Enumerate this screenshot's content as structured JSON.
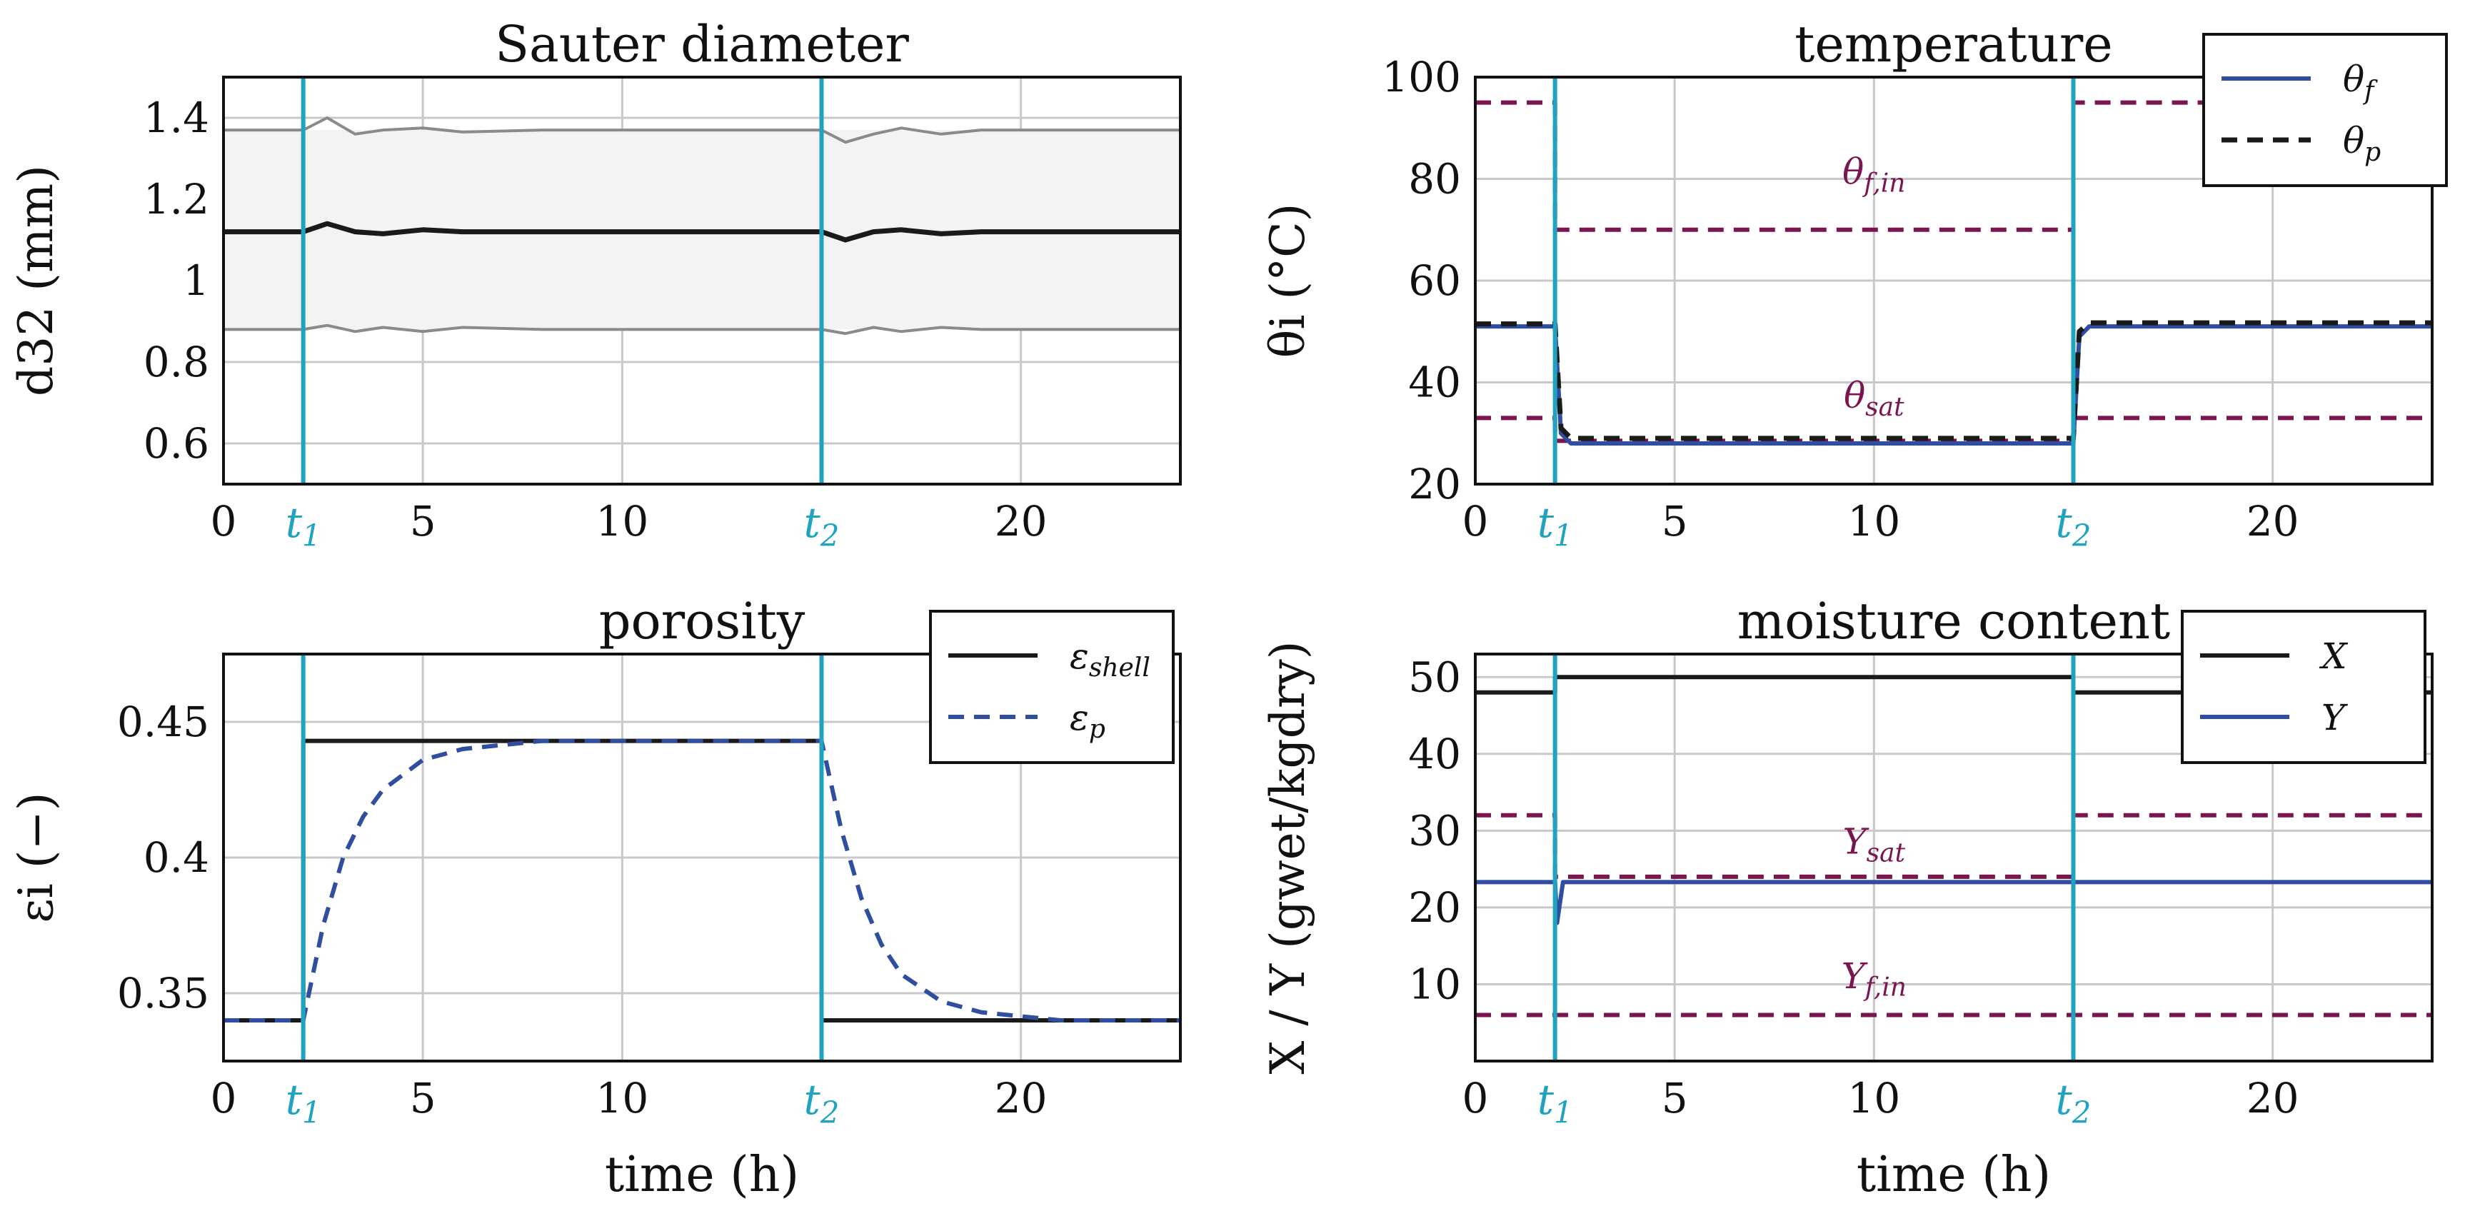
{
  "colors": {
    "marker": "#1fa3c0",
    "annotation": "#7a1550",
    "blue": "#2f4ea0",
    "black": "#1a1a1a",
    "gray": "#8a8a8a",
    "band": "#f3f3f3"
  },
  "t_markers": {
    "t1": {
      "base": "t",
      "sub": "1",
      "value": 2
    },
    "t2": {
      "base": "t",
      "sub": "2",
      "value": 15
    }
  },
  "chart_data": [
    {
      "id": "sauter",
      "type": "line",
      "title": "Sauter diameter",
      "ylabel": "d32 (mm)",
      "xlabel": "",
      "xlim": [
        0,
        24
      ],
      "ylim": [
        0.5,
        1.5
      ],
      "xticks": [
        0,
        5,
        10,
        20
      ],
      "xtick_labels": [
        "0",
        "5",
        "10",
        "20"
      ],
      "yticks": [
        0.6,
        0.8,
        1,
        1.2,
        1.4
      ],
      "ytick_labels": [
        "0.6",
        "0.8",
        "1",
        "1.2",
        "1.4"
      ],
      "band": {
        "upper": 1.37,
        "lower": 0.88
      },
      "series": [
        {
          "name": "mean",
          "x": [
            0,
            2,
            2.6,
            3.3,
            4,
            5,
            6,
            8,
            15,
            15.6,
            16.3,
            17,
            18,
            19,
            21,
            24
          ],
          "y": [
            1.12,
            1.12,
            1.14,
            1.12,
            1.115,
            1.125,
            1.12,
            1.12,
            1.12,
            1.1,
            1.12,
            1.125,
            1.115,
            1.12,
            1.12,
            1.12
          ]
        },
        {
          "name": "upper",
          "x": [
            0,
            2,
            2.6,
            3.3,
            4,
            5,
            6,
            8,
            15,
            15.6,
            16.3,
            17,
            18,
            19,
            21,
            24
          ],
          "y": [
            1.37,
            1.37,
            1.4,
            1.36,
            1.37,
            1.375,
            1.365,
            1.37,
            1.37,
            1.34,
            1.36,
            1.375,
            1.36,
            1.37,
            1.37,
            1.37
          ]
        },
        {
          "name": "lower",
          "x": [
            0,
            2,
            2.6,
            3.3,
            4,
            5,
            6,
            8,
            15,
            15.6,
            16.3,
            17,
            18,
            19,
            21,
            24
          ],
          "y": [
            0.88,
            0.88,
            0.89,
            0.875,
            0.885,
            0.875,
            0.885,
            0.88,
            0.88,
            0.87,
            0.885,
            0.875,
            0.885,
            0.88,
            0.88,
            0.88
          ]
        }
      ]
    },
    {
      "id": "temperature",
      "type": "line",
      "title": "temperature",
      "ylabel": "θi (°C)",
      "xlabel": "",
      "xlim": [
        0,
        24
      ],
      "ylim": [
        20,
        100
      ],
      "xticks": [
        0,
        5,
        10,
        20
      ],
      "xtick_labels": [
        "0",
        "5",
        "10",
        "20"
      ],
      "yticks": [
        20,
        40,
        60,
        80,
        100
      ],
      "ytick_labels": [
        "20",
        "40",
        "60",
        "80",
        "100"
      ],
      "legend": {
        "position": "top-right",
        "entries": [
          "θf",
          "θp"
        ]
      },
      "annotations": [
        {
          "text": "θf,in",
          "x": 10,
          "y": 79
        },
        {
          "text": "θsat",
          "x": 10,
          "y": 35
        }
      ],
      "series": [
        {
          "name": "θf,in",
          "x": [
            0,
            2,
            2,
            15,
            15,
            24
          ],
          "y": [
            95,
            95,
            70,
            70,
            95,
            95
          ]
        },
        {
          "name": "θsat",
          "x": [
            0,
            2,
            2,
            15,
            15,
            24
          ],
          "y": [
            33,
            33,
            28.5,
            28.5,
            33,
            33
          ]
        },
        {
          "name": "θf",
          "x": [
            0,
            2,
            2.15,
            2.4,
            15,
            15.15,
            15.4,
            24
          ],
          "y": [
            51,
            51,
            30,
            28,
            28,
            49,
            51,
            51
          ]
        },
        {
          "name": "θp",
          "x": [
            0,
            2,
            2.15,
            2.4,
            15,
            15.15,
            15.4,
            24
          ],
          "y": [
            51.5,
            51.5,
            31,
            29,
            29,
            50,
            51.7,
            51.7
          ]
        }
      ]
    },
    {
      "id": "porosity",
      "type": "line",
      "title": "porosity",
      "ylabel": "εi (−)",
      "xlabel": "time (h)",
      "xlim": [
        0,
        24
      ],
      "ylim": [
        0.325,
        0.475
      ],
      "xticks": [
        0,
        5,
        10,
        20
      ],
      "xtick_labels": [
        "0",
        "5",
        "10",
        "20"
      ],
      "yticks": [
        0.35,
        0.4,
        0.45
      ],
      "ytick_labels": [
        "0.35",
        "0.4",
        "0.45"
      ],
      "legend": {
        "position": "top-right",
        "entries": [
          "εshell",
          "εp"
        ]
      },
      "series": [
        {
          "name": "εshell",
          "x": [
            0,
            2,
            2,
            15,
            15,
            24
          ],
          "y": [
            0.34,
            0.34,
            0.443,
            0.443,
            0.34,
            0.34
          ]
        },
        {
          "name": "εp",
          "x": [
            0,
            2,
            2.5,
            3,
            3.5,
            4,
            5,
            6,
            8,
            15,
            15.5,
            16,
            16.5,
            17,
            18,
            19,
            21,
            24
          ],
          "y": [
            0.34,
            0.34,
            0.375,
            0.4,
            0.415,
            0.425,
            0.436,
            0.44,
            0.443,
            0.443,
            0.41,
            0.385,
            0.368,
            0.357,
            0.347,
            0.343,
            0.34,
            0.34
          ]
        }
      ]
    },
    {
      "id": "moisture",
      "type": "line",
      "title": "moisture content",
      "ylabel": "X / Y (gwet/kgdry)",
      "xlabel": "time (h)",
      "xlim": [
        0,
        24
      ],
      "ylim": [
        0,
        53
      ],
      "xticks": [
        0,
        5,
        10,
        20
      ],
      "xtick_labels": [
        "0",
        "5",
        "10",
        "20"
      ],
      "yticks": [
        10,
        20,
        30,
        40,
        50
      ],
      "ytick_labels": [
        "10",
        "20",
        "30",
        "40",
        "50"
      ],
      "legend": {
        "position": "top-right",
        "entries": [
          "X",
          "Y"
        ]
      },
      "annotations": [
        {
          "text": "Ysat",
          "x": 10,
          "y": 27
        },
        {
          "text": "Yf,in",
          "x": 10,
          "y": 9.5
        }
      ],
      "series": [
        {
          "name": "Ysat",
          "x": [
            0,
            2,
            2,
            15,
            15,
            24
          ],
          "y": [
            32,
            32,
            24,
            24,
            32,
            32
          ]
        },
        {
          "name": "Yf,in",
          "x": [
            0,
            24
          ],
          "y": [
            6,
            6
          ]
        },
        {
          "name": "X",
          "x": [
            0,
            2,
            2,
            15,
            15,
            24
          ],
          "y": [
            48,
            48,
            50,
            50,
            48,
            48
          ]
        },
        {
          "name": "Y",
          "x": [
            0,
            2,
            2.05,
            2.2,
            15,
            24
          ],
          "y": [
            23.3,
            23.3,
            18,
            23.3,
            23.3,
            23.3
          ]
        }
      ]
    }
  ]
}
